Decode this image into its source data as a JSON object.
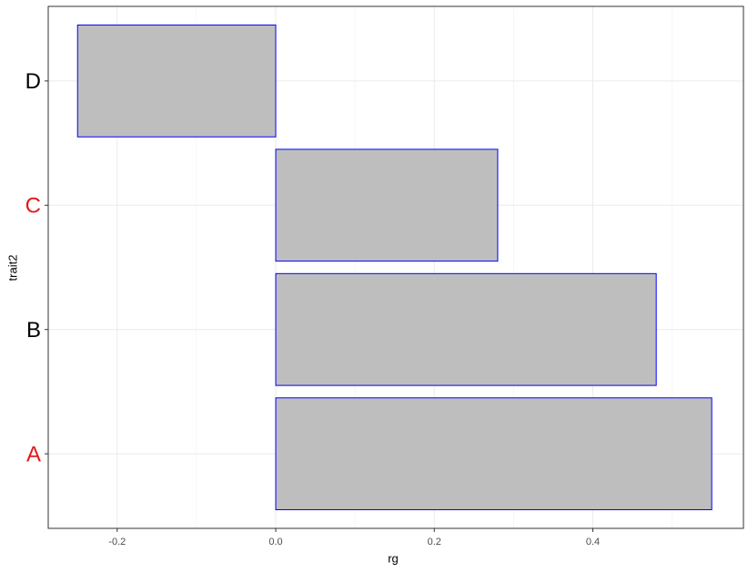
{
  "chart_data": {
    "type": "bar",
    "orientation": "horizontal",
    "x_label": "rg",
    "y_label": "trait2",
    "categories": [
      "A",
      "B",
      "C",
      "D"
    ],
    "category_colors": [
      "#e31a1c",
      "#000000",
      "#e31a1c",
      "#000000"
    ],
    "values": [
      0.55,
      0.48,
      0.28,
      -0.25
    ],
    "color": "#bebebe",
    "edge_color": "#0000ff",
    "xlim": [
      -0.287,
      0.59
    ],
    "xticks": [
      {
        "value": -0.2,
        "label": "-0.2"
      },
      {
        "value": 0,
        "label": "0.0"
      },
      {
        "value": 0.2,
        "label": "0.2"
      },
      {
        "value": 0.4,
        "label": "0.4"
      }
    ],
    "grid": true
  }
}
